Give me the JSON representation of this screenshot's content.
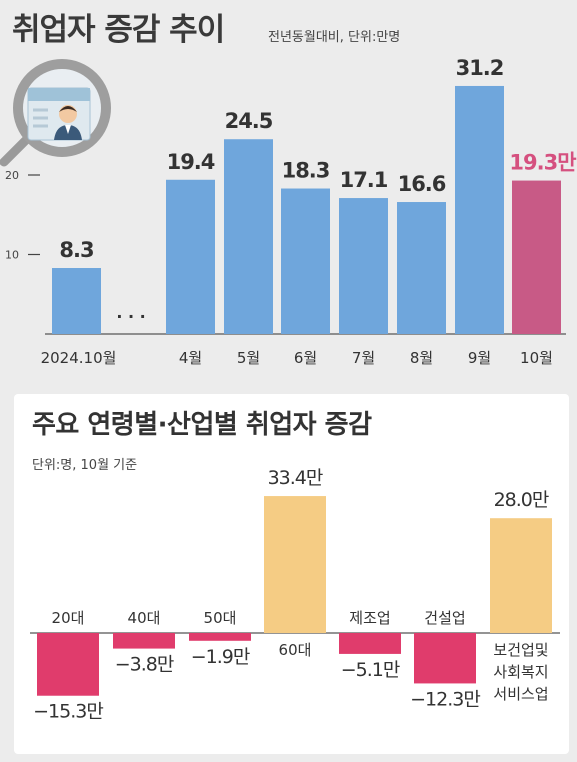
{
  "header": {
    "title": "취업자 증감 추이",
    "unit": "전년동월대비, 단위:만명"
  },
  "section2": {
    "title": "주요 연령별·산업별 취업자 증감",
    "unit": "단위:명, 10월 기준"
  },
  "chart_data": [
    {
      "type": "bar",
      "title": "취업자 증감 추이",
      "categories": [
        "2024.10월",
        "4월",
        "5월",
        "6월",
        "7월",
        "8월",
        "9월",
        "10월"
      ],
      "values": [
        8.3,
        19.4,
        24.5,
        18.3,
        17.1,
        16.6,
        31.2,
        19.3
      ],
      "value_labels": [
        "8.3",
        "19.4",
        "24.5",
        "18.3",
        "17.1",
        "16.6",
        "31.2",
        "19.3만"
      ],
      "gap_marker": "· · ·",
      "yticks": [
        10,
        20
      ],
      "ylim": [
        0,
        33
      ],
      "colors": {
        "bar": "#6fa6dc",
        "highlight": "#c85a86",
        "highlight_label": "#d5507f"
      }
    },
    {
      "type": "bar",
      "title": "주요 연령별·산업별 취업자 증감",
      "categories": [
        "20대",
        "40대",
        "50대",
        "60대",
        "제조업",
        "건설업",
        "보건업및 사회복지 서비스업"
      ],
      "values": [
        -15.3,
        -3.8,
        -1.9,
        33.4,
        -5.1,
        -12.3,
        28.0
      ],
      "value_labels": [
        "-15.3만",
        "-3.8만",
        "-1.9만",
        "33.4만",
        "-5.1만",
        "-12.3만",
        "28.0만"
      ],
      "colors": {
        "positive": "#f5cc84",
        "negative": "#e03c6c"
      }
    }
  ]
}
